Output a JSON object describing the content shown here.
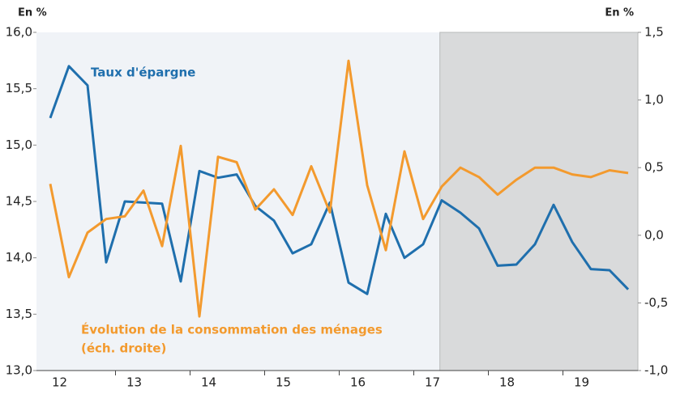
{
  "chart_data": {
    "type": "line",
    "y_label": "En %",
    "y2_label": "En %",
    "categories": [
      null,
      "12",
      null,
      null,
      null,
      "13",
      null,
      null,
      null,
      "14",
      null,
      null,
      null,
      "15",
      null,
      null,
      null,
      "16",
      null,
      null,
      null,
      "17",
      null,
      null,
      null,
      "18",
      null,
      null,
      null,
      "19",
      null,
      null
    ],
    "shaded_start": 21,
    "series": [
      {
        "name": "Taux d'épargne",
        "color": "#1f6fad",
        "axis": "y",
        "values": [
          15.24,
          15.7,
          15.53,
          13.96,
          14.5,
          14.49,
          14.48,
          13.79,
          14.77,
          14.71,
          14.74,
          14.46,
          14.33,
          14.04,
          14.12,
          14.49,
          13.78,
          13.68,
          14.39,
          14.0,
          14.12,
          14.51,
          14.4,
          14.26,
          13.93,
          13.94,
          14.12,
          14.47,
          14.14,
          13.9,
          13.89,
          13.72
        ]
      },
      {
        "name": "Évolution de la consommation des ménages",
        "axis_note": "(éch. droite)",
        "color": "#f39a2e",
        "axis": "y2",
        "values": [
          0.38,
          -0.31,
          0.02,
          0.12,
          0.14,
          0.33,
          -0.08,
          0.66,
          -0.6,
          0.58,
          0.54,
          0.19,
          0.34,
          0.15,
          0.51,
          0.17,
          1.29,
          0.37,
          -0.11,
          0.62,
          0.12,
          0.36,
          0.5,
          0.43,
          0.3,
          0.41,
          0.5,
          0.5,
          0.45,
          0.43,
          0.48,
          0.46
        ]
      }
    ],
    "ylim": [
      13,
      16
    ],
    "yticks": [
      {
        "value": 13,
        "label": "13,0"
      },
      {
        "value": 13.5,
        "label": "13,5"
      },
      {
        "value": 14,
        "label": "14,0"
      },
      {
        "value": 14.5,
        "label": "14,5"
      },
      {
        "value": 15,
        "label": "15,0"
      },
      {
        "value": 15.5,
        "label": "15,5"
      },
      {
        "value": 16,
        "label": "16,0"
      }
    ],
    "y2lim": [
      -1,
      1.5
    ],
    "y2ticks": [
      {
        "value": -1,
        "label": "-1,0"
      },
      {
        "value": -0.5,
        "label": "-0,5"
      },
      {
        "value": 0,
        "label": "0,0"
      },
      {
        "value": 0.5,
        "label": "0,5"
      },
      {
        "value": 1,
        "label": "1,0"
      },
      {
        "value": 1.5,
        "label": "1,5"
      }
    ]
  }
}
